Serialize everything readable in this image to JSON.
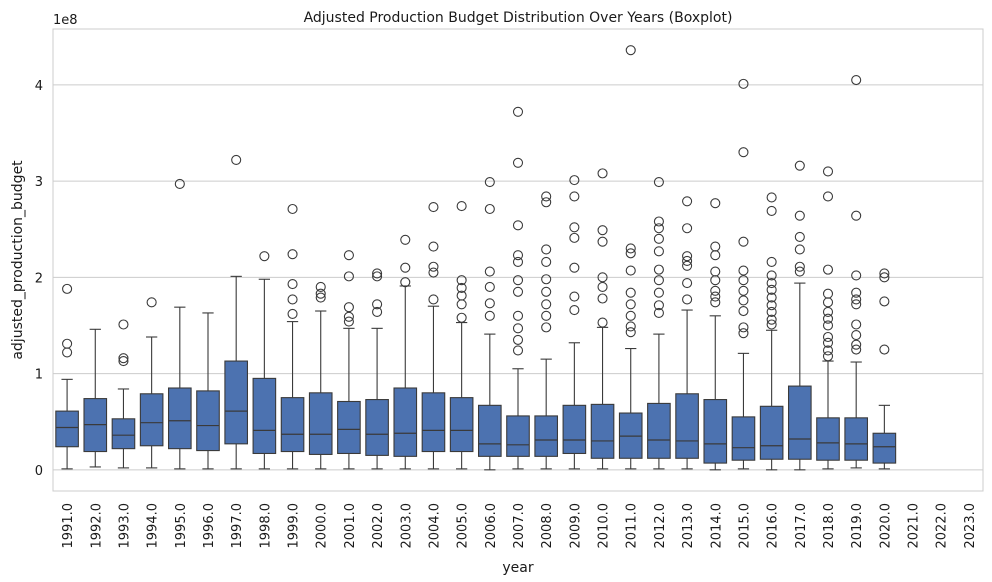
{
  "chart_data": {
    "type": "box",
    "title": "Adjusted Production Budget Distribution Over Years (Boxplot)",
    "xlabel": "year",
    "ylabel": "adjusted_production_budget",
    "y_scale_label": "1e8",
    "y_ticks": [
      0,
      1,
      2,
      3,
      4
    ],
    "ylim": [
      -0.22,
      4.58
    ],
    "grid": "horizontal",
    "box_color": "#4c72b0",
    "line_color": "#3a3a3a",
    "categories": [
      "1991.0",
      "1992.0",
      "1993.0",
      "1994.0",
      "1995.0",
      "1996.0",
      "1997.0",
      "1998.0",
      "1999.0",
      "2000.0",
      "2001.0",
      "2002.0",
      "2003.0",
      "2004.0",
      "2005.0",
      "2006.0",
      "2007.0",
      "2008.0",
      "2009.0",
      "2010.0",
      "2011.0",
      "2012.0",
      "2013.0",
      "2014.0",
      "2015.0",
      "2016.0",
      "2017.0",
      "2018.0",
      "2019.0",
      "2020.0",
      "2021.0",
      "2022.0",
      "2023.0"
    ],
    "boxes": [
      {
        "min": 0.01,
        "q1": 0.24,
        "median": 0.44,
        "q3": 0.61,
        "max": 0.94,
        "outliers": [
          1.22,
          1.31,
          1.88
        ]
      },
      {
        "min": 0.03,
        "q1": 0.19,
        "median": 0.47,
        "q3": 0.74,
        "max": 1.46,
        "outliers": []
      },
      {
        "min": 0.02,
        "q1": 0.22,
        "median": 0.36,
        "q3": 0.53,
        "max": 0.84,
        "outliers": [
          1.13,
          1.16,
          1.51
        ]
      },
      {
        "min": 0.02,
        "q1": 0.25,
        "median": 0.49,
        "q3": 0.79,
        "max": 1.38,
        "outliers": [
          1.74
        ]
      },
      {
        "min": 0.01,
        "q1": 0.22,
        "median": 0.51,
        "q3": 0.85,
        "max": 1.69,
        "outliers": [
          2.97
        ]
      },
      {
        "min": 0.01,
        "q1": 0.2,
        "median": 0.46,
        "q3": 0.82,
        "max": 1.63,
        "outliers": []
      },
      {
        "min": 0.01,
        "q1": 0.27,
        "median": 0.61,
        "q3": 1.13,
        "max": 2.01,
        "outliers": [
          3.22
        ]
      },
      {
        "min": 0.01,
        "q1": 0.17,
        "median": 0.41,
        "q3": 0.95,
        "max": 1.98,
        "outliers": [
          2.22
        ]
      },
      {
        "min": 0.01,
        "q1": 0.19,
        "median": 0.37,
        "q3": 0.75,
        "max": 1.54,
        "outliers": [
          1.62,
          1.77,
          1.93,
          2.24,
          2.71
        ]
      },
      {
        "min": 0.01,
        "q1": 0.16,
        "median": 0.37,
        "q3": 0.8,
        "max": 1.65,
        "outliers": [
          1.79,
          1.83,
          1.9
        ]
      },
      {
        "min": 0.01,
        "q1": 0.17,
        "median": 0.42,
        "q3": 0.71,
        "max": 1.47,
        "outliers": [
          1.54,
          1.59,
          1.69,
          2.01,
          2.23
        ]
      },
      {
        "min": 0.01,
        "q1": 0.15,
        "median": 0.37,
        "q3": 0.73,
        "max": 1.47,
        "outliers": [
          1.64,
          1.72,
          2.01,
          2.04
        ]
      },
      {
        "min": 0.01,
        "q1": 0.14,
        "median": 0.38,
        "q3": 0.85,
        "max": 1.91,
        "outliers": [
          1.95,
          2.1,
          2.39
        ]
      },
      {
        "min": 0.01,
        "q1": 0.19,
        "median": 0.41,
        "q3": 0.8,
        "max": 1.7,
        "outliers": [
          1.77,
          2.05,
          2.11,
          2.32,
          2.73
        ]
      },
      {
        "min": 0.01,
        "q1": 0.19,
        "median": 0.41,
        "q3": 0.75,
        "max": 1.53,
        "outliers": [
          1.58,
          1.72,
          1.81,
          1.89,
          1.97,
          2.74
        ]
      },
      {
        "min": 0.0,
        "q1": 0.14,
        "median": 0.27,
        "q3": 0.67,
        "max": 1.41,
        "outliers": [
          1.6,
          1.73,
          1.9,
          2.06,
          2.71,
          2.99
        ]
      },
      {
        "min": 0.01,
        "q1": 0.14,
        "median": 0.26,
        "q3": 0.56,
        "max": 1.05,
        "outliers": [
          1.24,
          1.35,
          1.47,
          1.6,
          1.85,
          1.97,
          2.16,
          2.23,
          2.54,
          3.19,
          3.72
        ]
      },
      {
        "min": 0.01,
        "q1": 0.14,
        "median": 0.31,
        "q3": 0.56,
        "max": 1.15,
        "outliers": [
          1.48,
          1.6,
          1.72,
          1.85,
          1.98,
          2.16,
          2.29,
          2.78,
          2.84
        ]
      },
      {
        "min": 0.01,
        "q1": 0.17,
        "median": 0.31,
        "q3": 0.67,
        "max": 1.32,
        "outliers": [
          1.66,
          1.8,
          2.1,
          2.41,
          2.52,
          2.84,
          3.01
        ]
      },
      {
        "min": 0.01,
        "q1": 0.12,
        "median": 0.3,
        "q3": 0.68,
        "max": 1.48,
        "outliers": [
          1.53,
          1.78,
          1.9,
          2.0,
          2.37,
          2.49,
          3.08
        ]
      },
      {
        "min": 0.01,
        "q1": 0.12,
        "median": 0.35,
        "q3": 0.59,
        "max": 1.26,
        "outliers": [
          1.43,
          1.49,
          1.6,
          1.72,
          1.84,
          2.07,
          2.25,
          2.3,
          4.36
        ]
      },
      {
        "min": 0.01,
        "q1": 0.12,
        "median": 0.31,
        "q3": 0.69,
        "max": 1.41,
        "outliers": [
          1.63,
          1.71,
          1.84,
          1.97,
          2.08,
          2.27,
          2.4,
          2.51,
          2.58,
          2.99
        ]
      },
      {
        "min": 0.01,
        "q1": 0.12,
        "median": 0.3,
        "q3": 0.79,
        "max": 1.66,
        "outliers": [
          1.77,
          1.94,
          2.12,
          2.17,
          2.22,
          2.51,
          2.79
        ]
      },
      {
        "min": 0.0,
        "q1": 0.07,
        "median": 0.27,
        "q3": 0.73,
        "max": 1.6,
        "outliers": [
          1.74,
          1.8,
          1.86,
          1.97,
          2.06,
          2.23,
          2.32,
          2.77
        ]
      },
      {
        "min": 0.01,
        "q1": 0.1,
        "median": 0.23,
        "q3": 0.55,
        "max": 1.21,
        "outliers": [
          1.42,
          1.48,
          1.65,
          1.76,
          1.86,
          1.97,
          2.07,
          2.37,
          3.3,
          4.01
        ]
      },
      {
        "min": 0.0,
        "q1": 0.11,
        "median": 0.25,
        "q3": 0.66,
        "max": 1.45,
        "outliers": [
          1.51,
          1.56,
          1.64,
          1.71,
          1.79,
          1.87,
          1.94,
          2.02,
          2.16,
          2.69,
          2.83
        ]
      },
      {
        "min": 0.0,
        "q1": 0.11,
        "median": 0.32,
        "q3": 0.87,
        "max": 1.94,
        "outliers": [
          2.06,
          2.11,
          2.29,
          2.42,
          2.64,
          3.16
        ]
      },
      {
        "min": 0.01,
        "q1": 0.1,
        "median": 0.28,
        "q3": 0.54,
        "max": 1.13,
        "outliers": [
          1.18,
          1.24,
          1.32,
          1.38,
          1.5,
          1.57,
          1.64,
          1.74,
          1.83,
          2.08,
          2.84,
          3.1
        ]
      },
      {
        "min": 0.02,
        "q1": 0.1,
        "median": 0.27,
        "q3": 0.54,
        "max": 1.12,
        "outliers": [
          1.25,
          1.3,
          1.4,
          1.51,
          1.72,
          1.77,
          1.84,
          2.02,
          2.64,
          4.05
        ]
      },
      {
        "min": 0.01,
        "q1": 0.07,
        "median": 0.24,
        "q3": 0.38,
        "max": 0.67,
        "outliers": [
          1.25,
          1.75,
          2.0,
          2.04
        ]
      },
      null,
      null,
      null
    ]
  }
}
